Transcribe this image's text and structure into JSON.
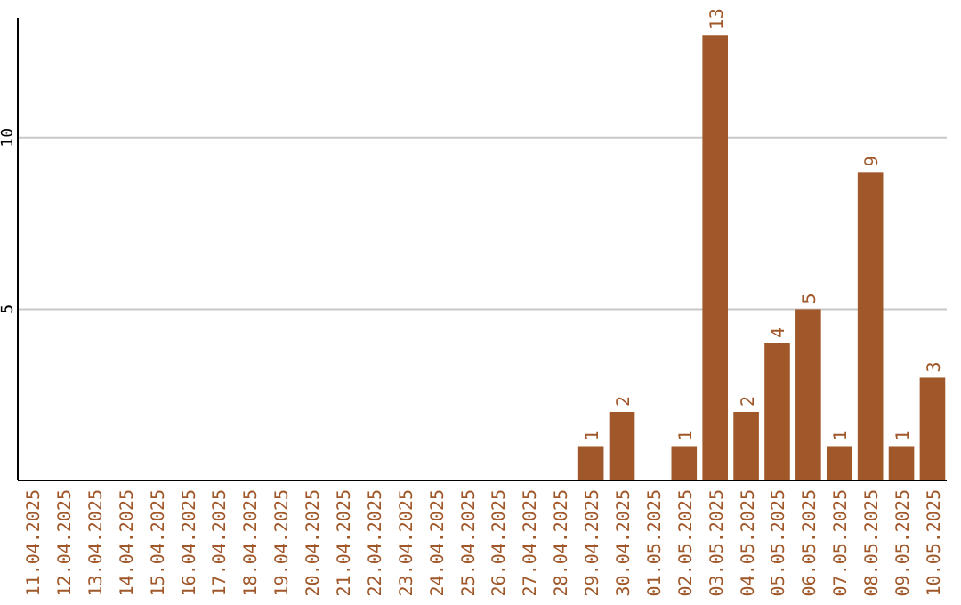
{
  "chart_data": {
    "type": "bar",
    "categories": [
      "11.04.2025",
      "12.04.2025",
      "13.04.2025",
      "14.04.2025",
      "15.04.2025",
      "16.04.2025",
      "17.04.2025",
      "18.04.2025",
      "19.04.2025",
      "20.04.2025",
      "21.04.2025",
      "22.04.2025",
      "23.04.2025",
      "24.04.2025",
      "25.04.2025",
      "26.04.2025",
      "27.04.2025",
      "28.04.2025",
      "29.04.2025",
      "30.04.2025",
      "01.05.2025",
      "02.05.2025",
      "03.05.2025",
      "04.05.2025",
      "05.05.2025",
      "06.05.2025",
      "07.05.2025",
      "08.05.2025",
      "09.05.2025",
      "10.05.2025"
    ],
    "values": [
      null,
      null,
      null,
      null,
      null,
      null,
      null,
      null,
      null,
      null,
      null,
      null,
      null,
      null,
      null,
      null,
      null,
      null,
      1,
      2,
      null,
      1,
      13,
      2,
      4,
      5,
      1,
      9,
      1,
      3
    ],
    "color": "#a0582a",
    "ylim": [
      0,
      13.5
    ],
    "yticks": [
      5,
      10
    ],
    "grid": "y",
    "data_labels": true
  }
}
